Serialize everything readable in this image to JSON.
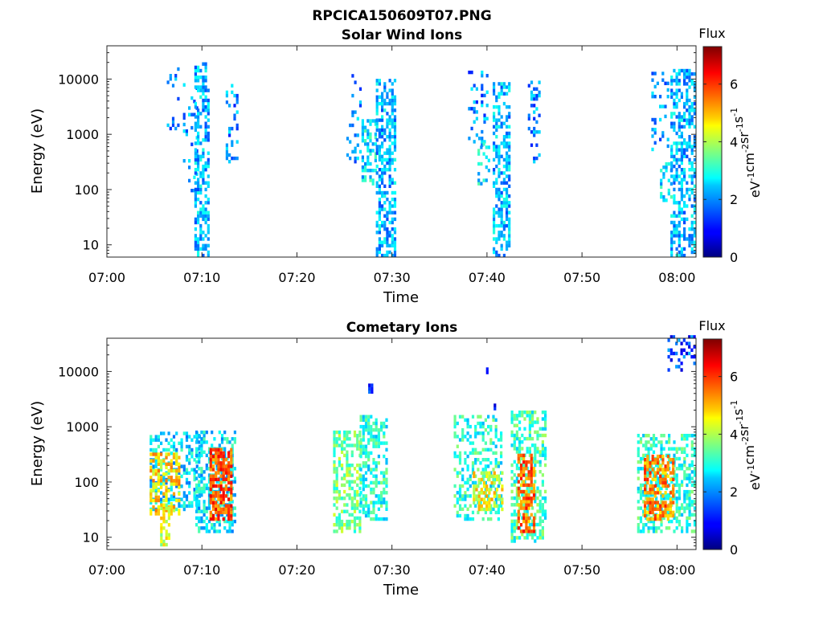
{
  "figure": {
    "title": "RPCICA150609T07.PNG"
  },
  "colorbar": {
    "label": "Flux",
    "unit_base": "eV",
    "unit_parts": [
      {
        "base": "eV",
        "exp": "-1"
      },
      {
        "base": "cm",
        "exp": "-2"
      },
      {
        "base": "sr",
        "exp": "-1"
      },
      {
        "base": "s",
        "exp": "-1"
      }
    ],
    "range": [
      0,
      7.3
    ],
    "ticks": [
      "0",
      "2",
      "4",
      "6"
    ]
  },
  "chart_data": [
    {
      "type": "heatmap",
      "title": "Solar Wind Ions",
      "xlabel": "Time",
      "ylabel": "Energy (eV)",
      "x_range_minutes": [
        0,
        62
      ],
      "x_ticks": [
        "07:00",
        "07:10",
        "07:20",
        "07:30",
        "07:40",
        "07:50",
        "08:00"
      ],
      "y_scale": "log",
      "y_range": [
        6,
        40000
      ],
      "y_ticks": [
        "10",
        "100",
        "1000",
        "10000"
      ],
      "clusters": [
        {
          "t0": 6.3,
          "t1": 7.6,
          "e_lo": 600,
          "e_hi": 15000,
          "v": 1.8,
          "fill": 0.18
        },
        {
          "t0": 8.0,
          "t1": 9.4,
          "e_lo": 90,
          "e_hi": 8000,
          "v": 2.0,
          "fill": 0.18
        },
        {
          "t0": 9.2,
          "t1": 10.8,
          "e_lo": 6,
          "e_hi": 18000,
          "v": 2.2,
          "fill": 0.5
        },
        {
          "t0": 12.5,
          "t1": 13.8,
          "e_lo": 300,
          "e_hi": 8000,
          "v": 1.9,
          "fill": 0.3
        },
        {
          "t0": 25.2,
          "t1": 26.8,
          "e_lo": 300,
          "e_hi": 12000,
          "v": 2.0,
          "fill": 0.15
        },
        {
          "t0": 26.8,
          "t1": 28.3,
          "e_lo": 120,
          "e_hi": 1800,
          "v": 2.6,
          "fill": 0.5
        },
        {
          "t0": 28.3,
          "t1": 30.2,
          "e_lo": 6,
          "e_hi": 9000,
          "v": 2.2,
          "fill": 0.55
        },
        {
          "t0": 38.0,
          "t1": 40.0,
          "e_lo": 600,
          "e_hi": 15000,
          "v": 1.9,
          "fill": 0.18
        },
        {
          "t0": 39.0,
          "t1": 40.2,
          "e_lo": 120,
          "e_hi": 700,
          "v": 2.6,
          "fill": 0.3
        },
        {
          "t0": 40.6,
          "t1": 42.4,
          "e_lo": 6,
          "e_hi": 8000,
          "v": 2.2,
          "fill": 0.55
        },
        {
          "t0": 44.3,
          "t1": 45.6,
          "e_lo": 300,
          "e_hi": 9000,
          "v": 1.9,
          "fill": 0.25
        },
        {
          "t0": 57.3,
          "t1": 59.0,
          "e_lo": 500,
          "e_hi": 12000,
          "v": 1.9,
          "fill": 0.18
        },
        {
          "t0": 58.2,
          "t1": 59.3,
          "e_lo": 60,
          "e_hi": 300,
          "v": 2.6,
          "fill": 0.35
        },
        {
          "t0": 59.3,
          "t1": 61.8,
          "e_lo": 6,
          "e_hi": 15000,
          "v": 2.2,
          "fill": 0.5
        }
      ]
    },
    {
      "type": "heatmap",
      "title": "Cometary Ions",
      "xlabel": "Time",
      "ylabel": "Energy (eV)",
      "x_range_minutes": [
        0,
        62
      ],
      "x_ticks": [
        "07:00",
        "07:10",
        "07:20",
        "07:30",
        "07:40",
        "07:50",
        "08:00"
      ],
      "y_scale": "log",
      "y_range": [
        6,
        40000
      ],
      "y_ticks": [
        "10",
        "100",
        "1000",
        "10000"
      ],
      "clusters": [
        {
          "t0": 4.5,
          "t1": 9.8,
          "e_lo": 30,
          "e_hi": 800,
          "v": 2.5,
          "fill": 0.45
        },
        {
          "t0": 4.5,
          "t1": 7.5,
          "e_lo": 25,
          "e_hi": 300,
          "v": 4.8,
          "fill": 0.55
        },
        {
          "t0": 5.6,
          "t1": 6.6,
          "e_lo": 6,
          "e_hi": 40,
          "v": 4.3,
          "fill": 0.5
        },
        {
          "t0": 9.3,
          "t1": 13.6,
          "e_lo": 12,
          "e_hi": 800,
          "v": 2.6,
          "fill": 0.5
        },
        {
          "t0": 10.8,
          "t1": 13.2,
          "e_lo": 20,
          "e_hi": 400,
          "v": 5.8,
          "fill": 0.7
        },
        {
          "t0": 23.8,
          "t1": 26.6,
          "e_lo": 12,
          "e_hi": 800,
          "v": 3.6,
          "fill": 0.5
        },
        {
          "t0": 26.6,
          "t1": 29.3,
          "e_lo": 20,
          "e_hi": 1500,
          "v": 3.0,
          "fill": 0.55
        },
        {
          "t0": 36.5,
          "t1": 41.5,
          "e_lo": 20,
          "e_hi": 1500,
          "v": 3.0,
          "fill": 0.4
        },
        {
          "t0": 38.5,
          "t1": 41.5,
          "e_lo": 30,
          "e_hi": 150,
          "v": 4.5,
          "fill": 0.45
        },
        {
          "t0": 42.5,
          "t1": 46.2,
          "e_lo": 8,
          "e_hi": 1800,
          "v": 3.2,
          "fill": 0.5
        },
        {
          "t0": 43.2,
          "t1": 45.0,
          "e_lo": 12,
          "e_hi": 300,
          "v": 5.6,
          "fill": 0.6
        },
        {
          "t0": 55.8,
          "t1": 61.8,
          "e_lo": 12,
          "e_hi": 700,
          "v": 3.0,
          "fill": 0.5
        },
        {
          "t0": 56.5,
          "t1": 59.5,
          "e_lo": 20,
          "e_hi": 300,
          "v": 5.4,
          "fill": 0.6
        },
        {
          "t0": 27.5,
          "t1": 27.8,
          "e_lo": 4000,
          "e_hi": 5500,
          "v": 1.5,
          "fill": 0.8
        },
        {
          "t0": 39.9,
          "t1": 40.1,
          "e_lo": 9000,
          "e_hi": 11000,
          "v": 1.2,
          "fill": 1.0
        },
        {
          "t0": 40.7,
          "t1": 40.9,
          "e_lo": 2000,
          "e_hi": 2500,
          "v": 1.2,
          "fill": 1.0
        },
        {
          "t0": 59.0,
          "t1": 61.8,
          "e_lo": 10000,
          "e_hi": 40000,
          "v": 1.4,
          "fill": 0.3
        }
      ]
    }
  ]
}
